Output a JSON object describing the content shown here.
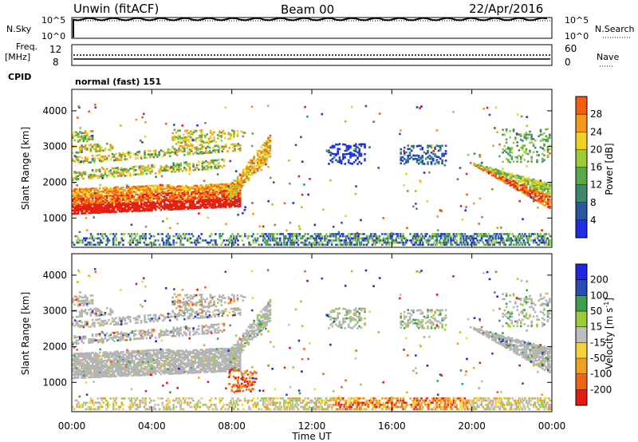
{
  "header": {
    "station": "Unwin (fitACF)",
    "beam": "Beam 00",
    "date": "22/Apr/2016"
  },
  "params": {
    "nsky_label": "N.Sky",
    "nsearch_label": "N.Search",
    "nsky_ticks": [
      "10^5",
      "10^0"
    ],
    "nsearch_ticks": [
      "10^5",
      "10^0"
    ],
    "freq_label_1": "Freq.",
    "freq_label_2": "[MHz]",
    "freq_ticks": [
      "12",
      "8"
    ],
    "nave_label": "Nave",
    "nave_ticks": [
      "60",
      "0"
    ],
    "cpid_label": "CPID",
    "cpid_value": "normal (fast) 151"
  },
  "x_axis": {
    "label": "Time UT",
    "ticks": [
      "00:00",
      "04:00",
      "08:00",
      "12:00",
      "16:00",
      "20:00",
      "00:00"
    ]
  },
  "colors": {
    "power_scale": [
      "#1e2ee6",
      "#2a55a0",
      "#3d8a6a",
      "#5aa84a",
      "#9ccc38",
      "#f0d020",
      "#f59a18",
      "#f06010",
      "#e62010"
    ],
    "velocity_scale": [
      "#e61a14",
      "#f06414",
      "#f0a020",
      "#f5d23c",
      "#bebebe",
      "#9ccc38",
      "#3da050",
      "#2a4ab4",
      "#1e28dc"
    ],
    "ground_scatter": "#b4b4b4"
  },
  "chart_data": [
    {
      "type": "heatmap",
      "panel": "power",
      "ylabel": "Slant Range [km]",
      "yticks": [
        1000,
        2000,
        3000,
        4000
      ],
      "ylim": [
        180,
        4600
      ],
      "xlim_hours": [
        0,
        24
      ],
      "colorbar_label": "Power [dB]",
      "colorbar_ticks": [
        4,
        8,
        12,
        16,
        20,
        24,
        28
      ],
      "colorbar_range": [
        0,
        32
      ],
      "scatter_regions": [
        {
          "t_start": 0.0,
          "t_end": 9.3,
          "r_start": 1100,
          "r_end": 1900,
          "value": "high (24-32 dB)"
        },
        {
          "t_start": 0.0,
          "t_end": 8.6,
          "r_start": 2100,
          "r_end": 3500,
          "value": "moderate (12-24 dB)"
        },
        {
          "t_start": 8.0,
          "t_end": 10.1,
          "r_start": 1400,
          "r_end": 3500,
          "value": "moderate-high"
        },
        {
          "t_start": 12.7,
          "t_end": 14.7,
          "r_start": 2500,
          "r_end": 3200,
          "value": "low (4-8 dB)"
        },
        {
          "t_start": 16.3,
          "t_end": 18.8,
          "r_start": 2500,
          "r_end": 3100,
          "value": "low (4-12 dB)"
        },
        {
          "t_start": 19.8,
          "t_end": 24.0,
          "r_start": 1200,
          "r_end": 2600,
          "value": "high (20-32 dB)"
        },
        {
          "t_start": 0.0,
          "t_end": 24.0,
          "r_start": 200,
          "r_end": 600,
          "value": "low near-range (4-12 dB)"
        }
      ]
    },
    {
      "type": "heatmap",
      "panel": "velocity",
      "ylabel": "Slant Range [km]",
      "yticks": [
        1000,
        2000,
        3000,
        4000
      ],
      "ylim": [
        180,
        4600
      ],
      "xlim_hours": [
        0,
        24
      ],
      "colorbar_label": "Velocity [m s^-1]",
      "colorbar_ticks": [
        -200,
        -100,
        -50,
        -15,
        15,
        50,
        100,
        200
      ],
      "scatter_regions": [
        {
          "t_start": 0.0,
          "t_end": 9.3,
          "r_start": 1100,
          "r_end": 1900,
          "value": "ground scatter (grey)"
        },
        {
          "t_start": 0.0,
          "t_end": 8.6,
          "r_start": 2100,
          "r_end": 3500,
          "value": "ground scatter with mixed velocities"
        },
        {
          "t_start": 7.7,
          "t_end": 9.3,
          "r_start": 700,
          "r_end": 1450,
          "value": "-50 to -200 m/s"
        },
        {
          "t_start": 19.8,
          "t_end": 24.0,
          "r_start": 1200,
          "r_end": 2600,
          "value": "ground scatter, +15 to +50 m/s edges"
        },
        {
          "t_start": 9.5,
          "t_end": 24.0,
          "r_start": 200,
          "r_end": 600,
          "value": "-15 to -100 m/s near-range"
        }
      ]
    }
  ]
}
